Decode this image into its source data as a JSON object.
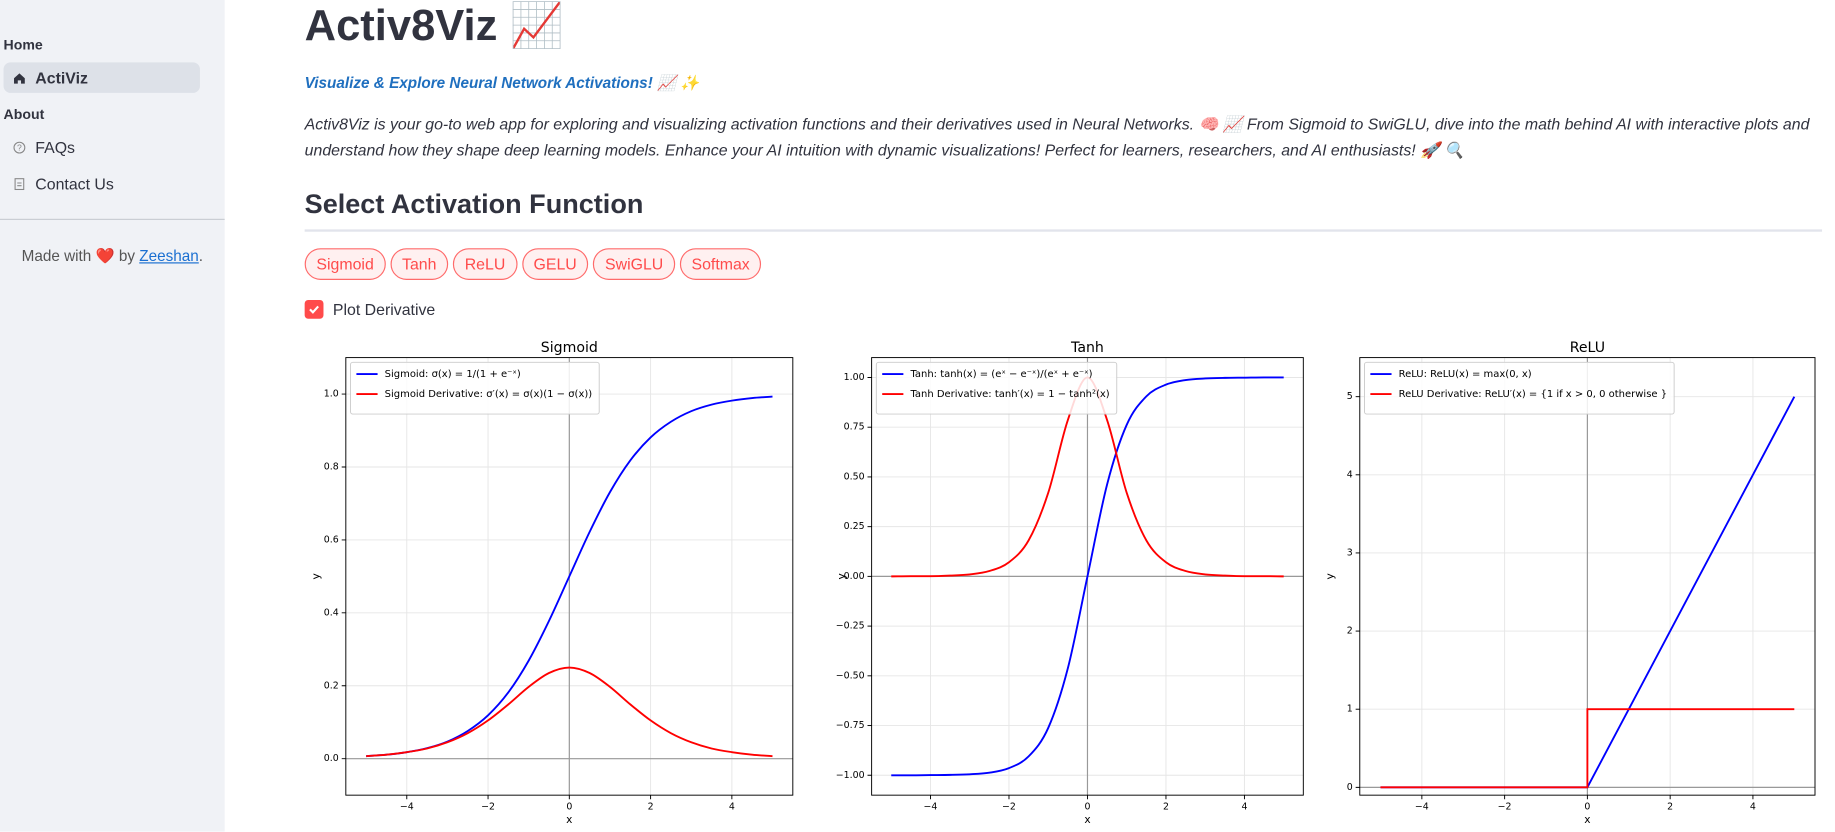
{
  "sidebar": {
    "sections": [
      {
        "heading": "Home",
        "items": [
          "ActiViz"
        ]
      },
      {
        "heading": "About",
        "items": [
          "FAQs",
          "Contact Us"
        ]
      }
    ],
    "footer": {
      "prefix": "Made with ❤️ by",
      "link": "Zeeshan",
      "suffix": "."
    }
  },
  "header": {
    "title": "Activ8Viz 📈",
    "tagline": "Visualize & Explore Neural Network Activations! 📈 ✨",
    "description": "Activ8Viz is your go-to web app for exploring and visualizing activation functions and their derivatives used in Neural Networks. 🧠 📈 From Sigmoid to SwiGLU, dive into the math behind AI with interactive plots and understand how they shape deep learning models. Enhance your AI intuition with dynamic visualizations! Perfect for learners, researchers, and AI enthusiasts! 🚀 🔍"
  },
  "section_title": "Select Activation Function",
  "buttons": [
    "Sigmoid",
    "Tanh",
    "ReLU",
    "GELU",
    "SwiGLU",
    "Softmax"
  ],
  "checkbox": {
    "label": "Plot Derivative",
    "checked": true
  },
  "chart_data": [
    {
      "type": "line",
      "title": "Sigmoid",
      "x_label": "x",
      "y_label": "y",
      "grid": true,
      "x": [
        -5,
        -4.5,
        -4,
        -3.5,
        -3,
        -2.5,
        -2,
        -1.5,
        -1,
        -0.5,
        0,
        0.5,
        1,
        1.5,
        2,
        2.5,
        3,
        3.5,
        4,
        4.5,
        5
      ],
      "series": [
        {
          "name": "Sigmoid: σ(x) = 1/(1 + e⁻ˣ)",
          "color": "#0000ff",
          "values": [
            0.007,
            0.011,
            0.018,
            0.029,
            0.047,
            0.076,
            0.119,
            0.182,
            0.269,
            0.378,
            0.5,
            0.622,
            0.731,
            0.818,
            0.881,
            0.924,
            0.953,
            0.971,
            0.982,
            0.989,
            0.993
          ]
        },
        {
          "name": "Sigmoid Derivative: σ′(x) = σ(x)(1 − σ(x))",
          "color": "#ff0000",
          "values": [
            0.007,
            0.011,
            0.018,
            0.028,
            0.045,
            0.07,
            0.105,
            0.149,
            0.197,
            0.235,
            0.25,
            0.235,
            0.197,
            0.149,
            0.105,
            0.07,
            0.045,
            0.028,
            0.018,
            0.011,
            0.007
          ]
        }
      ],
      "xlim": [
        -5.5,
        5.5
      ],
      "xticks": [
        {
          "value": -4,
          "label": "−4"
        },
        {
          "value": -2,
          "label": "−2"
        },
        0,
        2,
        4
      ],
      "ylim": [
        -0.1,
        1.1
      ],
      "yticks": [
        {
          "value": 0,
          "label": "0.0"
        },
        0.2,
        0.4,
        0.6,
        0.8,
        {
          "value": 1,
          "label": "1.0"
        }
      ]
    },
    {
      "type": "line",
      "title": "Tanh",
      "x_label": "x",
      "y_label": "y",
      "grid": true,
      "x": [
        -5,
        -4.5,
        -4,
        -3.5,
        -3,
        -2.5,
        -2,
        -1.5,
        -1,
        -0.5,
        0,
        0.5,
        1,
        1.5,
        2,
        2.5,
        3,
        3.5,
        4,
        4.5,
        5
      ],
      "series": [
        {
          "name": "Tanh: tanh(x) = (eˣ − e⁻ˣ)/(eˣ + e⁻ˣ)",
          "color": "#0000ff",
          "values": [
            -1.0,
            -1.0,
            -0.999,
            -0.998,
            -0.995,
            -0.987,
            -0.964,
            -0.905,
            -0.762,
            -0.462,
            0,
            0.462,
            0.762,
            0.905,
            0.964,
            0.987,
            0.995,
            0.998,
            0.999,
            1.0,
            1.0
          ]
        },
        {
          "name": "Tanh Derivative: tanh′(x) = 1 − tanh²(x)",
          "color": "#ff0000",
          "values": [
            0,
            0.001,
            0.001,
            0.004,
            0.01,
            0.027,
            0.071,
            0.181,
            0.42,
            0.786,
            1,
            0.786,
            0.42,
            0.181,
            0.071,
            0.027,
            0.01,
            0.004,
            0.001,
            0.001,
            0
          ]
        }
      ],
      "xlim": [
        -5.5,
        5.5
      ],
      "xticks": [
        {
          "value": -4,
          "label": "−4"
        },
        {
          "value": -2,
          "label": "−2"
        },
        0,
        2,
        4
      ],
      "ylim": [
        -1.1,
        1.1
      ],
      "yticks": [
        {
          "value": -1,
          "label": "−1.00"
        },
        {
          "value": -0.75,
          "label": "−0.75"
        },
        {
          "value": -0.5,
          "label": "−0.50"
        },
        {
          "value": -0.25,
          "label": "−0.25"
        },
        {
          "value": 0,
          "label": "0.00"
        },
        0.25,
        {
          "value": 0.5,
          "label": "0.50"
        },
        0.75,
        {
          "value": 1,
          "label": "1.00"
        }
      ]
    },
    {
      "type": "line",
      "title": "ReLU",
      "x_label": "x",
      "y_label": "y",
      "grid": true,
      "x": [
        -5,
        -4,
        -3,
        -2,
        -1,
        0,
        0,
        1,
        2,
        3,
        4,
        5
      ],
      "series": [
        {
          "name": "ReLU: ReLU(x) = max(0, x)",
          "color": "#0000ff",
          "values": [
            0,
            0,
            0,
            0,
            0,
            0,
            0,
            1,
            2,
            3,
            4,
            5
          ]
        },
        {
          "name": "ReLU Derivative: ReLU′(x) = {1 if x > 0, 0 otherwise }",
          "color": "#ff0000",
          "values": [
            0,
            0,
            0,
            0,
            0,
            0,
            1,
            1,
            1,
            1,
            1,
            1
          ]
        }
      ],
      "xlim": [
        -5.5,
        5.5
      ],
      "xticks": [
        {
          "value": -4,
          "label": "−4"
        },
        {
          "value": -2,
          "label": "−2"
        },
        0,
        2,
        4
      ],
      "ylim": [
        -0.1,
        5.5
      ],
      "yticks": [
        0,
        1,
        2,
        3,
        4,
        5
      ]
    }
  ]
}
